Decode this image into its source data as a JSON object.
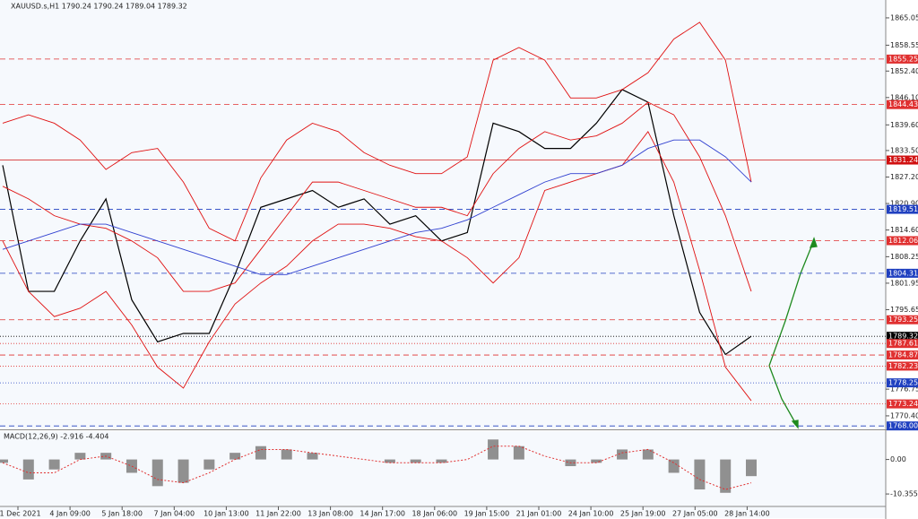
{
  "chart_data": [
    {
      "type": "price",
      "title": "XAUUSD.s,H1  1790.24 1790.24 1789.04 1789.32",
      "x_labels": [
        "31 Dec 2021",
        "4 Jan 09:00",
        "5 Jan 18:00",
        "7 Jan 04:00",
        "10 Jan 13:00",
        "11 Jan 22:00",
        "13 Jan 08:00",
        "14 Jan 17:00",
        "18 Jan 06:00",
        "19 Jan 15:00",
        "21 Jan 01:00",
        "24 Jan 10:00",
        "25 Jan 19:00",
        "27 Jan 05:00",
        "28 Jan 14:00"
      ],
      "ylim": [
        1767.4,
        1869.3
      ],
      "yticks": [
        1865.05,
        1858.55,
        {
          "value": 1852.4,
          "label": "1852.40"
        },
        {
          "value": 1846.1,
          "label": "1846.10"
        },
        {
          "value": 1839.6,
          "label": "1839.60"
        },
        {
          "value": 1833.5,
          "label": "1833.50"
        },
        {
          "value": 1827.2,
          "label": "1827.20"
        },
        {
          "value": 1820.9,
          "label": "1820.90"
        },
        {
          "value": 1814.6,
          "label": "1814.60"
        },
        1808.25,
        1801.95,
        1795.65,
        1776.75,
        {
          "value": 1770.4,
          "label": "1770.40"
        }
      ],
      "series": [
        {
          "name": "Price",
          "color": "#000000",
          "values": [
            1830,
            1800,
            1800,
            1812,
            1822,
            1798,
            1788,
            1790,
            1790,
            1804,
            1820,
            1822,
            1824,
            1820,
            1822,
            1816,
            1818,
            1812,
            1814,
            1840,
            1838,
            1834,
            1834,
            1840,
            1848,
            1845,
            1818,
            1795,
            1785,
            1789.32
          ]
        },
        {
          "name": "Upper band",
          "color": "#e01010",
          "values": [
            1840,
            1842,
            1840,
            1836,
            1829,
            1833,
            1834,
            1826,
            1815,
            1812,
            1827,
            1836,
            1840,
            1838,
            1833,
            1830,
            1828,
            1828,
            1832,
            1855,
            1858,
            1855,
            1846,
            1846,
            1848,
            1852,
            1860,
            1864,
            1855,
            1826
          ]
        },
        {
          "name": "Middle band",
          "color": "#e01010",
          "values": [
            1825,
            1822,
            1818,
            1816,
            1815,
            1812,
            1808,
            1800,
            1800,
            1802,
            1810,
            1818,
            1826,
            1826,
            1824,
            1822,
            1820,
            1820,
            1818,
            1828,
            1834,
            1838,
            1836,
            1837,
            1840,
            1845,
            1842,
            1832,
            1818,
            1800
          ]
        },
        {
          "name": "Lower band",
          "color": "#e01010",
          "values": [
            1812,
            1800,
            1794,
            1796,
            1800,
            1792,
            1782,
            1777,
            1788,
            1797,
            1802,
            1806,
            1812,
            1816,
            1816,
            1815,
            1813,
            1812,
            1808,
            1802,
            1808,
            1824,
            1826,
            1828,
            1830,
            1838,
            1826,
            1805,
            1782,
            1774
          ]
        },
        {
          "name": "Moving average",
          "color": "#3040d0",
          "values": [
            1810,
            1812,
            1814,
            1816,
            1816,
            1814,
            1812,
            1810,
            1808,
            1806,
            1804,
            1804,
            1806,
            1808,
            1810,
            1812,
            1814,
            1815,
            1817,
            1820,
            1823,
            1826,
            1828,
            1828,
            1830,
            1834,
            1836,
            1836,
            1832,
            1826
          ]
        }
      ],
      "levels": [
        {
          "value": 1855.25,
          "color": "#e03030",
          "dash": "6,4"
        },
        {
          "value": 1844.43,
          "color": "#e03030",
          "dash": "6,4"
        },
        {
          "value": 1831.24,
          "color": "#d01010",
          "dash": "none"
        },
        {
          "value": 1819.51,
          "color": "#2040c0",
          "dash": "6,4"
        },
        {
          "value": 1812.06,
          "color": "#e03030",
          "dash": "6,4"
        },
        {
          "value": 1804.31,
          "color": "#2040c0",
          "dash": "6,4"
        },
        {
          "value": 1793.25,
          "color": "#e03030",
          "dash": "6,4"
        },
        {
          "value": 1789.32,
          "color": "#000000",
          "dash": "1,2"
        },
        {
          "value": 1787.61,
          "color": "#e03030",
          "dash": "1,2"
        },
        {
          "value": 1784.87,
          "color": "#e03030",
          "dash": "6,4"
        },
        {
          "value": 1782.23,
          "color": "#e03030",
          "dash": "1,2"
        },
        {
          "value": 1778.25,
          "color": "#2040c0",
          "dash": "1,2"
        },
        {
          "value": 1773.24,
          "color": "#e03030",
          "dash": "1,2"
        },
        {
          "value": 1768,
          "label": "1768.00",
          "color": "#2040c0",
          "dash": "6,4"
        }
      ]
    },
    {
      "type": "macd",
      "title": "MACD(12,26,9) -2.916 -4.404",
      "ylim": [
        -14.1,
        8.5
      ],
      "yticks": [
        {
          "value": 0,
          "label": "0.00"
        },
        -10.355
      ],
      "series": [
        {
          "name": "Histogram",
          "color": "#909090",
          "values": [
            -1,
            -6,
            -3,
            2,
            2,
            -4,
            -8,
            -7,
            -3,
            2,
            4,
            3,
            2,
            0,
            0,
            -1,
            -1,
            -1,
            0,
            6,
            4,
            0,
            -2,
            -1,
            3,
            3,
            -4,
            -9,
            -10,
            -5
          ]
        },
        {
          "name": "Signal",
          "color": "#e03030",
          "values": [
            -1,
            -4,
            -4,
            0,
            1,
            -2,
            -6,
            -7,
            -4,
            0,
            3,
            3,
            2,
            1,
            0,
            -1,
            -1,
            -1,
            0,
            4,
            4,
            1,
            -1,
            -1,
            2,
            3,
            -1,
            -6,
            -9,
            -7
          ]
        }
      ]
    }
  ]
}
